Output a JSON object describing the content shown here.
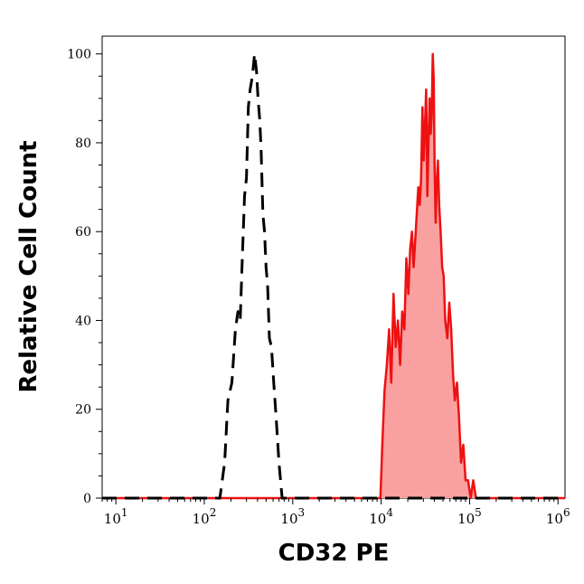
{
  "chart_data": {
    "type": "area",
    "title": "",
    "xlabel": "CD32 PE",
    "ylabel": "Relative Cell Count",
    "xscale": "log",
    "xlim": [
      7,
      1200000
    ],
    "ylim": [
      0,
      104
    ],
    "x_ticks": [
      {
        "value": 10,
        "base": "10",
        "exp": "1"
      },
      {
        "value": 100,
        "base": "10",
        "exp": "2"
      },
      {
        "value": 1000,
        "base": "10",
        "exp": "3"
      },
      {
        "value": 10000,
        "base": "10",
        "exp": "4"
      },
      {
        "value": 100000,
        "base": "10",
        "exp": "5"
      },
      {
        "value": 1000000,
        "base": "10",
        "exp": "6"
      }
    ],
    "y_ticks": [
      "0",
      "20",
      "40",
      "60",
      "80",
      "100"
    ],
    "grid": false,
    "series": [
      {
        "style": "dashed",
        "color": "#000000",
        "fill": "none",
        "points": [
          [
            7,
            0
          ],
          [
            150,
            0
          ],
          [
            170,
            8
          ],
          [
            185,
            22
          ],
          [
            205,
            26
          ],
          [
            225,
            38
          ],
          [
            240,
            42
          ],
          [
            255,
            40
          ],
          [
            270,
            55
          ],
          [
            285,
            68
          ],
          [
            300,
            72
          ],
          [
            315,
            88
          ],
          [
            330,
            92
          ],
          [
            350,
            95
          ],
          [
            370,
            100
          ],
          [
            390,
            96
          ],
          [
            405,
            90
          ],
          [
            425,
            85
          ],
          [
            440,
            78
          ],
          [
            460,
            64
          ],
          [
            480,
            60
          ],
          [
            500,
            52
          ],
          [
            520,
            48
          ],
          [
            545,
            36
          ],
          [
            575,
            34
          ],
          [
            610,
            26
          ],
          [
            650,
            18
          ],
          [
            700,
            8
          ],
          [
            760,
            0
          ],
          [
            1200000,
            0
          ]
        ]
      },
      {
        "style": "solid",
        "color": "#ee1111",
        "fill": "#f9a0a0",
        "points": [
          [
            7,
            0
          ],
          [
            9800,
            0
          ],
          [
            10300,
            12
          ],
          [
            10900,
            24
          ],
          [
            11600,
            30
          ],
          [
            12300,
            38
          ],
          [
            13000,
            26
          ],
          [
            13800,
            46
          ],
          [
            14600,
            34
          ],
          [
            15500,
            40
          ],
          [
            16400,
            30
          ],
          [
            17300,
            42
          ],
          [
            18300,
            38
          ],
          [
            19300,
            54
          ],
          [
            20300,
            46
          ],
          [
            21300,
            56
          ],
          [
            22300,
            60
          ],
          [
            23300,
            52
          ],
          [
            24300,
            58
          ],
          [
            25300,
            64
          ],
          [
            26300,
            70
          ],
          [
            27300,
            66
          ],
          [
            28300,
            72
          ],
          [
            29300,
            88
          ],
          [
            30300,
            76
          ],
          [
            31300,
            84
          ],
          [
            32300,
            92
          ],
          [
            33300,
            68
          ],
          [
            34300,
            80
          ],
          [
            35300,
            90
          ],
          [
            36300,
            82
          ],
          [
            37300,
            86
          ],
          [
            38300,
            100
          ],
          [
            39300,
            94
          ],
          [
            40300,
            74
          ],
          [
            41300,
            62
          ],
          [
            42300,
            70
          ],
          [
            43800,
            76
          ],
          [
            45300,
            66
          ],
          [
            47000,
            60
          ],
          [
            49000,
            52
          ],
          [
            51000,
            50
          ],
          [
            53000,
            40
          ],
          [
            56000,
            36
          ],
          [
            59000,
            44
          ],
          [
            62000,
            38
          ],
          [
            65000,
            28
          ],
          [
            68000,
            22
          ],
          [
            72000,
            26
          ],
          [
            76000,
            18
          ],
          [
            80000,
            8
          ],
          [
            85000,
            12
          ],
          [
            90000,
            4
          ],
          [
            96000,
            4
          ],
          [
            103000,
            0
          ],
          [
            110000,
            4
          ],
          [
            118000,
            0
          ],
          [
            1200000,
            0
          ]
        ]
      }
    ]
  }
}
